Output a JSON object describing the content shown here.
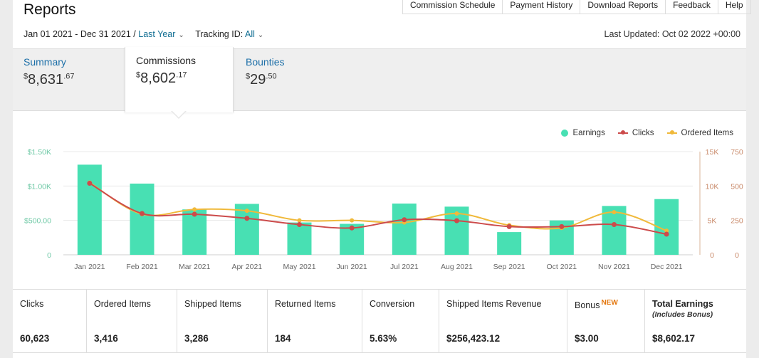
{
  "header": {
    "title": "Reports",
    "nav": [
      "Commission Schedule",
      "Payment History",
      "Download Reports",
      "Feedback",
      "Help"
    ]
  },
  "filters": {
    "date_range": "Jan 01 2021 - Dec 31 2021",
    "separator": "/",
    "period": "Last Year",
    "tracking_label": "Tracking ID:",
    "tracking_value": "All",
    "last_updated": "Last Updated: Oct 02 2022 +00:00"
  },
  "tabs": [
    {
      "label": "Summary",
      "currency": "$",
      "whole": "8,631",
      "cents": ".67"
    },
    {
      "label": "Commissions",
      "currency": "$",
      "whole": "8,602",
      "cents": ".17"
    },
    {
      "label": "Bounties",
      "currency": "$",
      "whole": "29",
      "cents": ".50"
    }
  ],
  "legend": {
    "earnings": "Earnings",
    "clicks": "Clicks",
    "ordered": "Ordered Items"
  },
  "colors": {
    "earnings": "#48e0b3",
    "clicks": "#cc4b4b",
    "ordered": "#f0b93a",
    "link": "#1c6fa8"
  },
  "chart_data": {
    "type": "bar",
    "categories": [
      "Jan 2021",
      "Feb 2021",
      "Mar 2021",
      "Apr 2021",
      "May 2021",
      "Jun 2021",
      "Jul 2021",
      "Aug 2021",
      "Sep 2021",
      "Oct 2021",
      "Nov 2021",
      "Dec 2021"
    ],
    "series": [
      {
        "name": "Earnings",
        "type": "bar",
        "axis": "left",
        "values": [
          1310,
          1035,
          660,
          740,
          470,
          450,
          745,
          700,
          330,
          500,
          710,
          810
        ]
      },
      {
        "name": "Clicks",
        "type": "line",
        "axis": "right1",
        "values": [
          10400,
          6000,
          5900,
          5300,
          4400,
          3900,
          5100,
          4950,
          4100,
          4100,
          4400,
          3000
        ]
      },
      {
        "name": "Ordered Items",
        "type": "line",
        "axis": "right2",
        "values": [
          525,
          295,
          330,
          320,
          250,
          250,
          235,
          300,
          215,
          195,
          310,
          175
        ]
      }
    ],
    "yaxis_left": {
      "ticks": [
        "0",
        "$500.00",
        "$1.00K",
        "$1.50K"
      ],
      "range": [
        0,
        1500
      ]
    },
    "yaxis_right1": {
      "ticks": [
        "0",
        "5K",
        "10K",
        "15K"
      ],
      "range": [
        0,
        15000
      ]
    },
    "yaxis_right2": {
      "ticks": [
        "0",
        "250",
        "500",
        "750"
      ],
      "range": [
        0,
        750
      ]
    },
    "grid": true,
    "legend_position": "top-right"
  },
  "stats": [
    {
      "label": "Clicks",
      "value": "60,623"
    },
    {
      "label": "Ordered Items",
      "value": "3,416"
    },
    {
      "label": "Shipped Items",
      "value": "3,286"
    },
    {
      "label": "Returned Items",
      "value": "184"
    },
    {
      "label": "Conversion",
      "value": "5.63%"
    },
    {
      "label": "Shipped Items Revenue",
      "value": "$256,423.12"
    },
    {
      "label": "Bonus",
      "badge": "NEW",
      "value": "$3.00"
    },
    {
      "label": "Total Earnings",
      "sublabel": "(Includes Bonus)",
      "value": "$8,602.17"
    }
  ]
}
